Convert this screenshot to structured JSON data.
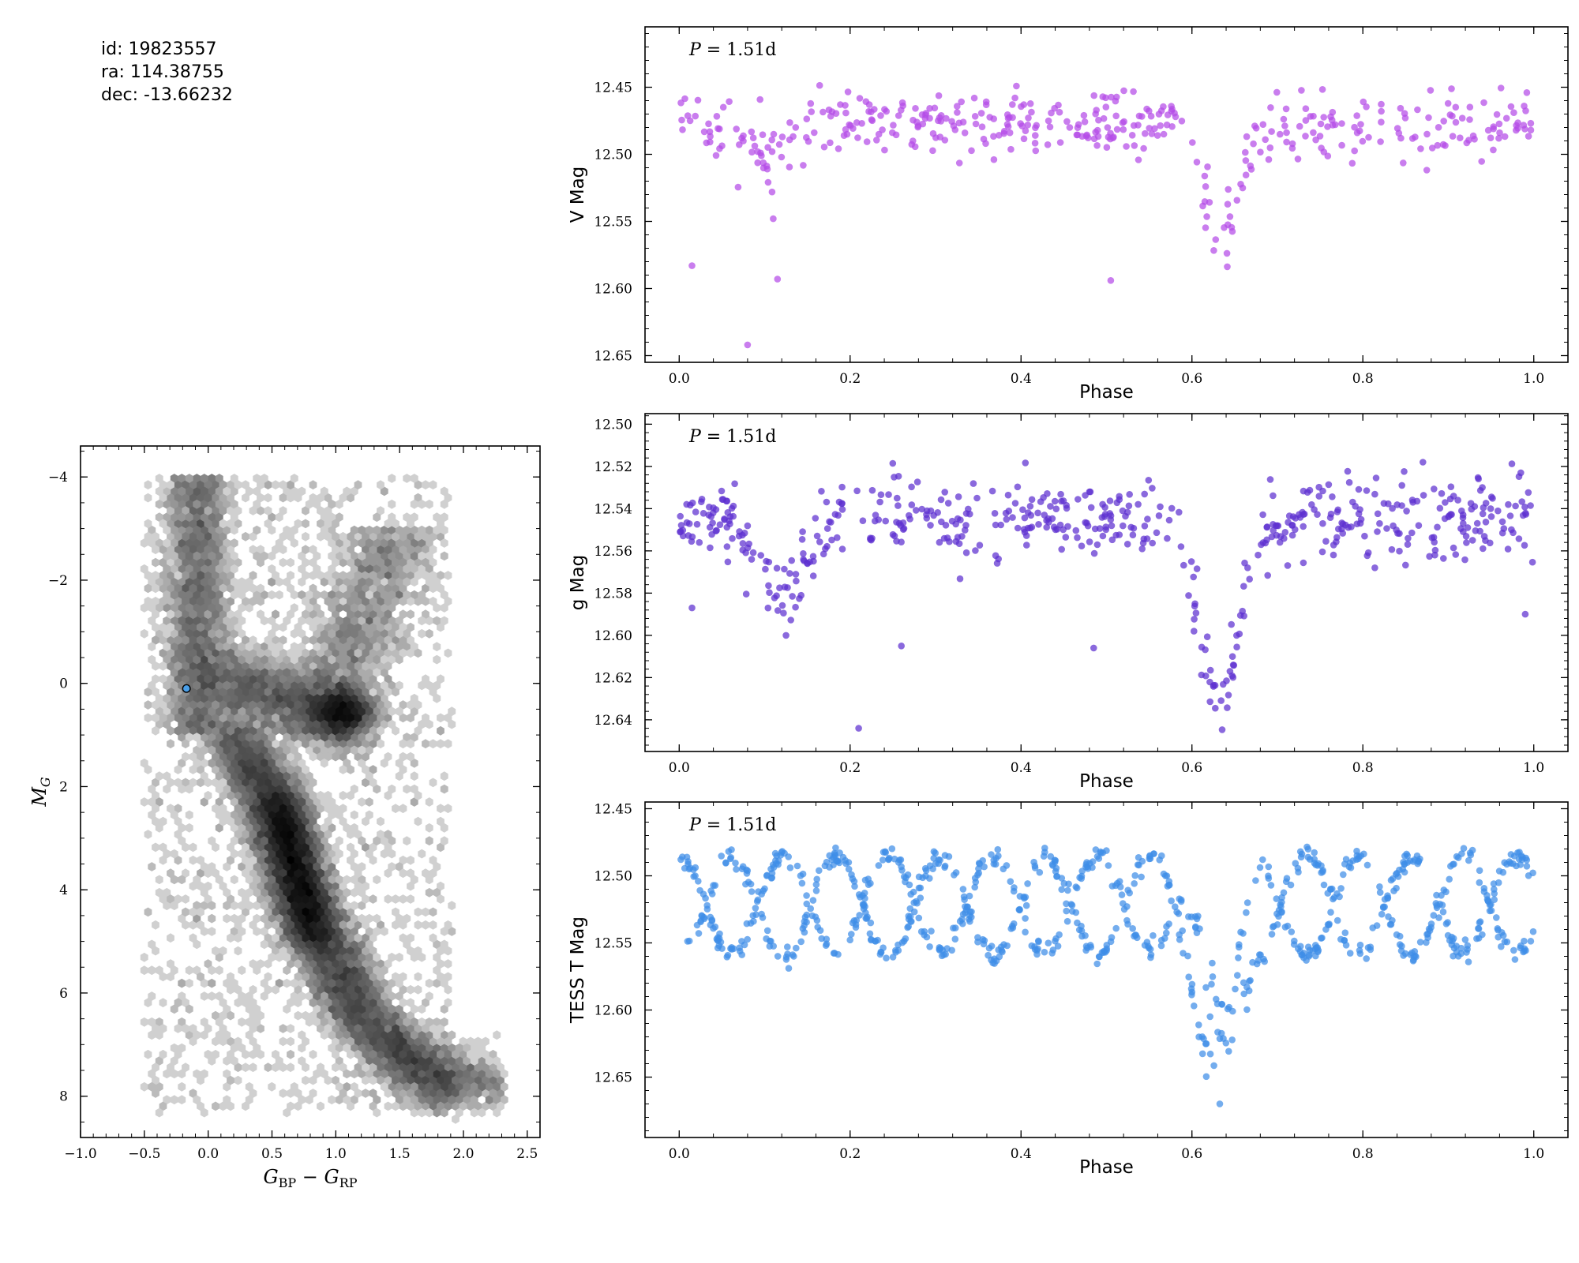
{
  "info": {
    "id_text": "id:  19823557",
    "ra_text": "ra:  114.38755",
    "dec_text": "dec:  -13.66232"
  },
  "colors": {
    "v_points": "#b44be8",
    "g_points": "#5d2fd0",
    "t_points": "#3f8ee8",
    "highlight": "#4a9fe8"
  },
  "chart_data": [
    {
      "type": "heatmap",
      "name": "cmd",
      "xlabel": "G_BP − G_RP",
      "ylabel": "M_G",
      "xlim": [
        -1.0,
        2.6
      ],
      "ylim": [
        8.8,
        -4.6
      ],
      "y_inverted": true,
      "xticks": [
        "−1.0",
        "−0.5",
        "0.0",
        "0.5",
        "1.0",
        "1.5",
        "2.0",
        "2.5"
      ],
      "yticks": [
        "−4",
        "−2",
        "0",
        "2",
        "4",
        "6",
        "8"
      ],
      "density_ridge": [
        {
          "color": -0.1,
          "mag": -4.0
        },
        {
          "color": -0.1,
          "mag": -2.0
        },
        {
          "color": -0.05,
          "mag": 0.0
        },
        {
          "color": 0.2,
          "mag": 1.0
        },
        {
          "color": 0.45,
          "mag": 2.0
        },
        {
          "color": 0.6,
          "mag": 3.0
        },
        {
          "color": 0.7,
          "mag": 4.0
        },
        {
          "color": 0.9,
          "mag": 5.0
        },
        {
          "color": 1.15,
          "mag": 6.0
        },
        {
          "color": 1.5,
          "mag": 7.0
        },
        {
          "color": 2.0,
          "mag": 7.8
        }
      ],
      "highlight_star": {
        "color": -0.17,
        "mag": 0.1
      },
      "grid": false
    },
    {
      "type": "scatter",
      "name": "V",
      "annotation": "P = 1.51d",
      "xlabel": "Phase",
      "ylabel": "V Mag",
      "xlim": [
        -0.04,
        1.04
      ],
      "ylim": [
        12.655,
        12.405
      ],
      "y_inverted": true,
      "xticks": [
        "0.0",
        "0.2",
        "0.4",
        "0.6",
        "0.8",
        "1.0"
      ],
      "yticks": [
        "12.45",
        "12.50",
        "12.55",
        "12.60",
        "12.65"
      ],
      "baseline_mag": 12.478,
      "scatter_mag": 0.012,
      "n_points": 430,
      "eclipses": [
        {
          "phase": 0.11,
          "depth": 0.025,
          "width": 0.03
        },
        {
          "phase": 0.635,
          "depth": 0.08,
          "width": 0.028
        }
      ],
      "outliers": [
        [
          0.015,
          12.583
        ],
        [
          0.08,
          12.642
        ],
        [
          0.115,
          12.593
        ],
        [
          0.505,
          12.594
        ],
        [
          0.11,
          12.548
        ]
      ],
      "grid": false
    },
    {
      "type": "scatter",
      "name": "g",
      "annotation": "P = 1.51d",
      "xlabel": "Phase",
      "ylabel": "g Mag",
      "xlim": [
        -0.04,
        1.04
      ],
      "ylim": [
        12.655,
        12.495
      ],
      "y_inverted": true,
      "xticks": [
        "0.0",
        "0.2",
        "0.4",
        "0.6",
        "0.8",
        "1.0"
      ],
      "yticks": [
        "12.50",
        "12.52",
        "12.54",
        "12.56",
        "12.58",
        "12.60",
        "12.62",
        "12.64"
      ],
      "baseline_mag": 12.545,
      "scatter_mag": 0.009,
      "n_points": 560,
      "eclipses": [
        {
          "phase": 0.12,
          "depth": 0.04,
          "width": 0.035
        },
        {
          "phase": 0.632,
          "depth": 0.09,
          "width": 0.032
        }
      ],
      "outliers": [
        [
          0.015,
          12.587
        ],
        [
          0.21,
          12.644
        ],
        [
          0.26,
          12.605
        ],
        [
          0.485,
          12.606
        ],
        [
          0.99,
          12.59
        ],
        [
          0.125,
          12.6
        ]
      ],
      "grid": false
    },
    {
      "type": "scatter",
      "name": "TESS",
      "annotation": "P = 1.51d",
      "xlabel": "Phase",
      "ylabel": "TESS T Mag",
      "xlim": [
        -0.04,
        1.04
      ],
      "ylim": [
        12.695,
        12.445
      ],
      "y_inverted": true,
      "xticks": [
        "0.0",
        "0.2",
        "0.4",
        "0.6",
        "0.8",
        "1.0"
      ],
      "yticks": [
        "12.45",
        "12.50",
        "12.55",
        "12.60",
        "12.65"
      ],
      "baseline_mag": 12.485,
      "aliased_period_phase": 0.1225,
      "aliased_depth": 0.075,
      "primary_eclipse": {
        "phase": 0.632,
        "depth": 0.13,
        "width": 0.03
      },
      "n_points": 900,
      "grid": false
    }
  ]
}
